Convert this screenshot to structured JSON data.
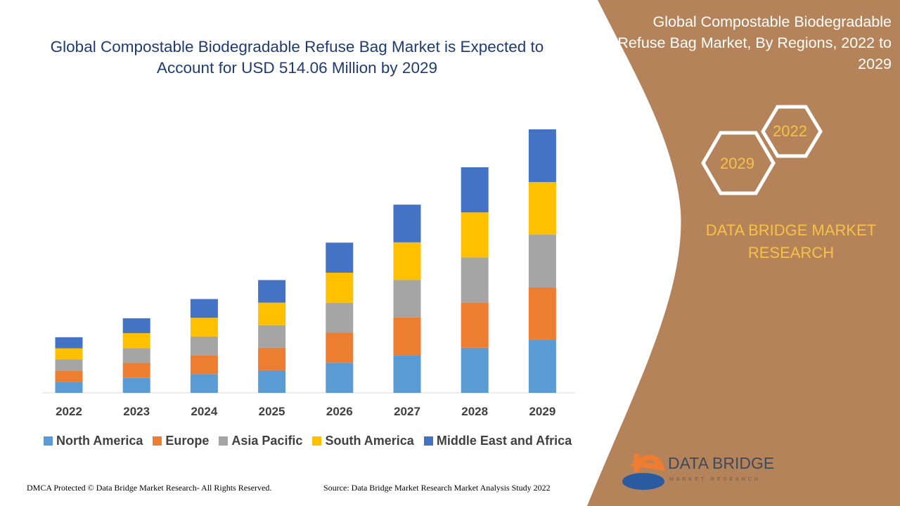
{
  "header": {
    "title": "Global Compostable Biodegradable Refuse Bag Market is Expected to Account for USD 514.06 Million by 2029"
  },
  "side_panel": {
    "title": "Global Compostable Biodegradable Refuse Bag Market, By Regions, 2022 to 2029",
    "hex_start": "2022",
    "hex_end": "2029",
    "brand": "DATA BRIDGE MARKET RESEARCH",
    "panel_color": "#b5835a"
  },
  "logo": {
    "name": "DATA BRIDGE",
    "tagline": "MARKET RESEARCH"
  },
  "footer": {
    "left": "DMCA Protected © Data Bridge Market Research- All Rights Reserved.",
    "right": "Source: Data Bridge Market Research Market Analysis Study 2022"
  },
  "chart_data": {
    "type": "bar",
    "stacked": true,
    "categories": [
      "2022",
      "2023",
      "2024",
      "2025",
      "2026",
      "2027",
      "2028",
      "2029"
    ],
    "series": [
      {
        "name": "North America",
        "color": "#5b9bd5",
        "values": [
          21.7,
          29.1,
          36.6,
          44.0,
          58.6,
          73.4,
          88.0,
          102.8
        ]
      },
      {
        "name": "Europe",
        "color": "#ed7d31",
        "values": [
          21.7,
          29.1,
          36.6,
          44.0,
          58.6,
          73.4,
          88.0,
          102.8
        ]
      },
      {
        "name": "Asia Pacific",
        "color": "#a5a5a5",
        "values": [
          21.7,
          29.1,
          36.6,
          44.0,
          58.6,
          73.4,
          88.0,
          102.8
        ]
      },
      {
        "name": "South America",
        "color": "#ffc000",
        "values": [
          21.7,
          29.1,
          36.6,
          44.0,
          58.6,
          73.4,
          88.0,
          102.8
        ]
      },
      {
        "name": "Middle East and Africa",
        "color": "#4472c4",
        "values": [
          21.7,
          29.1,
          36.6,
          44.0,
          58.6,
          73.5,
          88.0,
          102.8
        ]
      }
    ],
    "ylim": [
      0,
      514.06
    ],
    "grid": false,
    "legend": "bottom"
  }
}
